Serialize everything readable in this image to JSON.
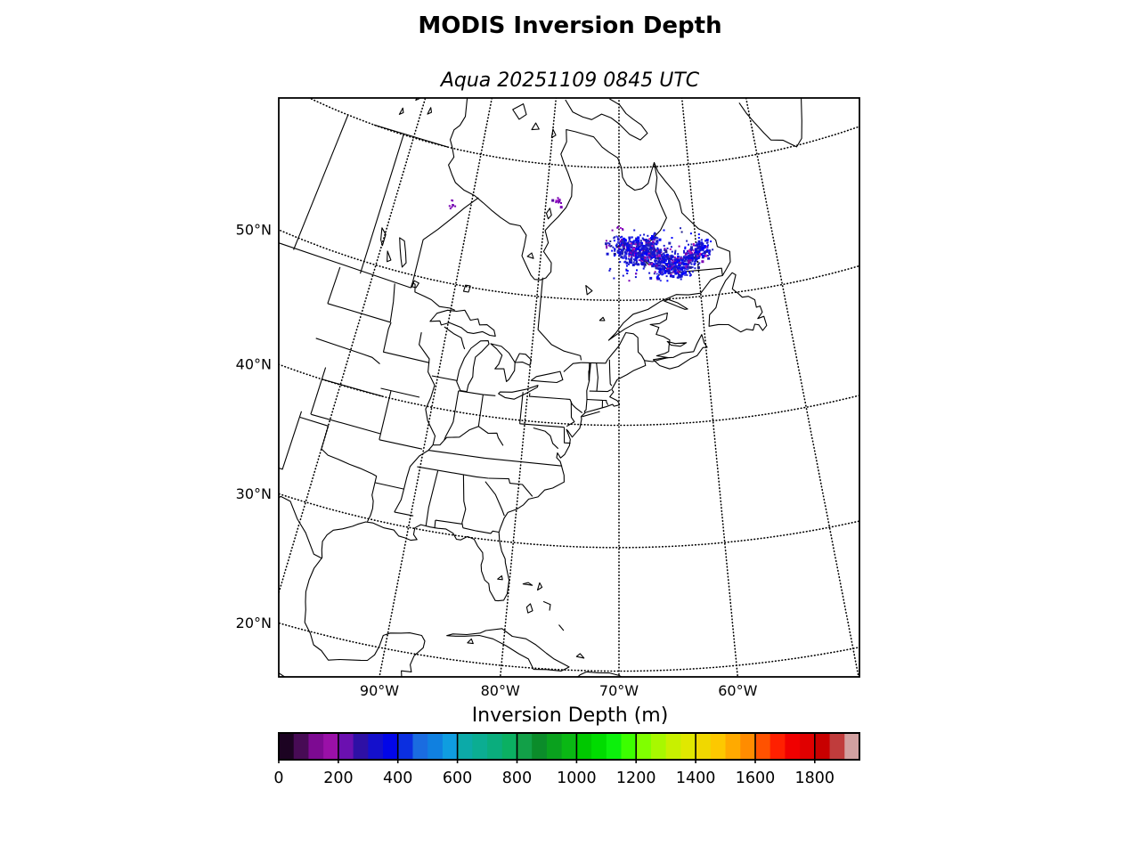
{
  "title": "MODIS Inversion Depth",
  "subtitle": "Aqua 20251109 0845 UTC",
  "axes": {
    "lat_labels": [
      {
        "text": "50°N",
        "lat": 50
      },
      {
        "text": "40°N",
        "lat": 40
      },
      {
        "text": "30°N",
        "lat": 30
      },
      {
        "text": "20°N",
        "lat": 20
      }
    ],
    "lon_labels": [
      {
        "text": "90°W",
        "lon": -90
      },
      {
        "text": "80°W",
        "lon": -80
      },
      {
        "text": "70°W",
        "lon": -70
      },
      {
        "text": "60°W",
        "lon": -60
      }
    ]
  },
  "graticule": {
    "parallels": [
      20,
      30,
      40,
      50,
      60
    ],
    "meridians": [
      -100,
      -90,
      -80,
      -70,
      -60,
      -50
    ],
    "style": "dotted"
  },
  "colorbar": {
    "label": "Inversion Depth (m)",
    "vmin": 0,
    "vmax": 1950,
    "bin_size": 50,
    "tick_values": [
      0,
      200,
      400,
      600,
      800,
      1000,
      1200,
      1400,
      1600,
      1800
    ],
    "tick_labels": [
      "0",
      "200",
      "400",
      "600",
      "800",
      "1000",
      "1200",
      "1400",
      "1600",
      "1800"
    ],
    "colors": [
      "#1c0322",
      "#470b55",
      "#7d0a92",
      "#9a10a8",
      "#6b10b0",
      "#2e10a5",
      "#1410cc",
      "#0206e8",
      "#0b2fe0",
      "#1a6ce0",
      "#1080e0",
      "#0f9de0",
      "#0caaa8",
      "#0bad92",
      "#0aad7d",
      "#0bb062",
      "#12a048",
      "#0b8c2a",
      "#0aa11e",
      "#0ab814",
      "#00c800",
      "#00dc00",
      "#0cf00c",
      "#3cff00",
      "#80ff00",
      "#a8f800",
      "#c8f000",
      "#e0e800",
      "#f0d800",
      "#fdc800",
      "#ffaa00",
      "#ff8c00",
      "#ff5200",
      "#ff2000",
      "#f00000",
      "#e00000",
      "#c80000",
      "#c03c3c",
      "#d2a0a0"
    ]
  },
  "overlay": {
    "palettes": {
      "blue": [
        [
          0.4,
          "#1414d2"
        ],
        [
          0.6,
          "#0000ff"
        ],
        [
          0.74,
          "#2626b6"
        ],
        [
          0.82,
          "#4040e8"
        ],
        [
          0.9,
          "#7a00b4"
        ],
        [
          0.96,
          "#b414b4"
        ],
        [
          1.0,
          "#1e1e8c"
        ]
      ],
      "purple": [
        [
          0.55,
          "#7a00b4"
        ],
        [
          0.85,
          "#5500a0"
        ],
        [
          1.0,
          "#a014c8"
        ]
      ]
    },
    "clusters": [
      {
        "lon": -69.5,
        "lat": 54.2,
        "n": 90,
        "dlon": 1.2,
        "dlat": 0.5,
        "palette": "blue"
      },
      {
        "lon": -68.3,
        "lat": 53.8,
        "n": 130,
        "dlon": 1.0,
        "dlat": 0.6,
        "palette": "blue"
      },
      {
        "lon": -67.0,
        "lat": 53.5,
        "n": 120,
        "dlon": 1.1,
        "dlat": 0.5,
        "palette": "blue"
      },
      {
        "lon": -66.0,
        "lat": 53.9,
        "n": 80,
        "dlon": 0.8,
        "dlat": 0.45,
        "palette": "blue"
      },
      {
        "lon": -65.0,
        "lat": 53.2,
        "n": 70,
        "dlon": 1.0,
        "dlat": 0.5,
        "palette": "blue"
      },
      {
        "lon": -63.8,
        "lat": 52.8,
        "n": 90,
        "dlon": 1.0,
        "dlat": 0.5,
        "palette": "blue"
      },
      {
        "lon": -62.5,
        "lat": 52.5,
        "n": 80,
        "dlon": 0.9,
        "dlat": 0.5,
        "palette": "blue"
      },
      {
        "lon": -61.3,
        "lat": 52.9,
        "n": 70,
        "dlon": 0.8,
        "dlat": 0.5,
        "palette": "blue"
      },
      {
        "lon": -60.3,
        "lat": 53.3,
        "n": 50,
        "dlon": 0.7,
        "dlat": 0.45,
        "palette": "blue"
      },
      {
        "lon": -64.5,
        "lat": 52.2,
        "n": 40,
        "dlon": 1.2,
        "dlat": 0.35,
        "palette": "blue"
      },
      {
        "lon": -66.8,
        "lat": 54.6,
        "n": 40,
        "dlon": 1.3,
        "dlat": 0.3,
        "palette": "blue"
      },
      {
        "lon": -62.2,
        "lat": 51.9,
        "n": 35,
        "dlon": 0.8,
        "dlat": 0.3,
        "palette": "blue"
      },
      {
        "lon": -59.5,
        "lat": 53.8,
        "n": 45,
        "dlon": 0.8,
        "dlat": 0.4,
        "palette": "blue"
      },
      {
        "lon": -58.8,
        "lat": 53.3,
        "n": 25,
        "dlon": 0.5,
        "dlat": 0.3,
        "palette": "blue"
      },
      {
        "lon": -65.5,
        "lat": 53.4,
        "n": 120,
        "dlon": 3.2,
        "dlat": 1.1,
        "palette": "blue"
      },
      {
        "lon": -92.4,
        "lat": 56.1,
        "n": 9,
        "dlon": 0.3,
        "dlat": 0.25,
        "palette": "purple"
      },
      {
        "lon": -78.4,
        "lat": 57.3,
        "n": 11,
        "dlon": 0.4,
        "dlat": 0.2,
        "palette": "purple"
      },
      {
        "lon": -70.0,
        "lat": 55.6,
        "n": 6,
        "dlon": 0.5,
        "dlat": 0.2,
        "palette": "purple"
      }
    ]
  }
}
